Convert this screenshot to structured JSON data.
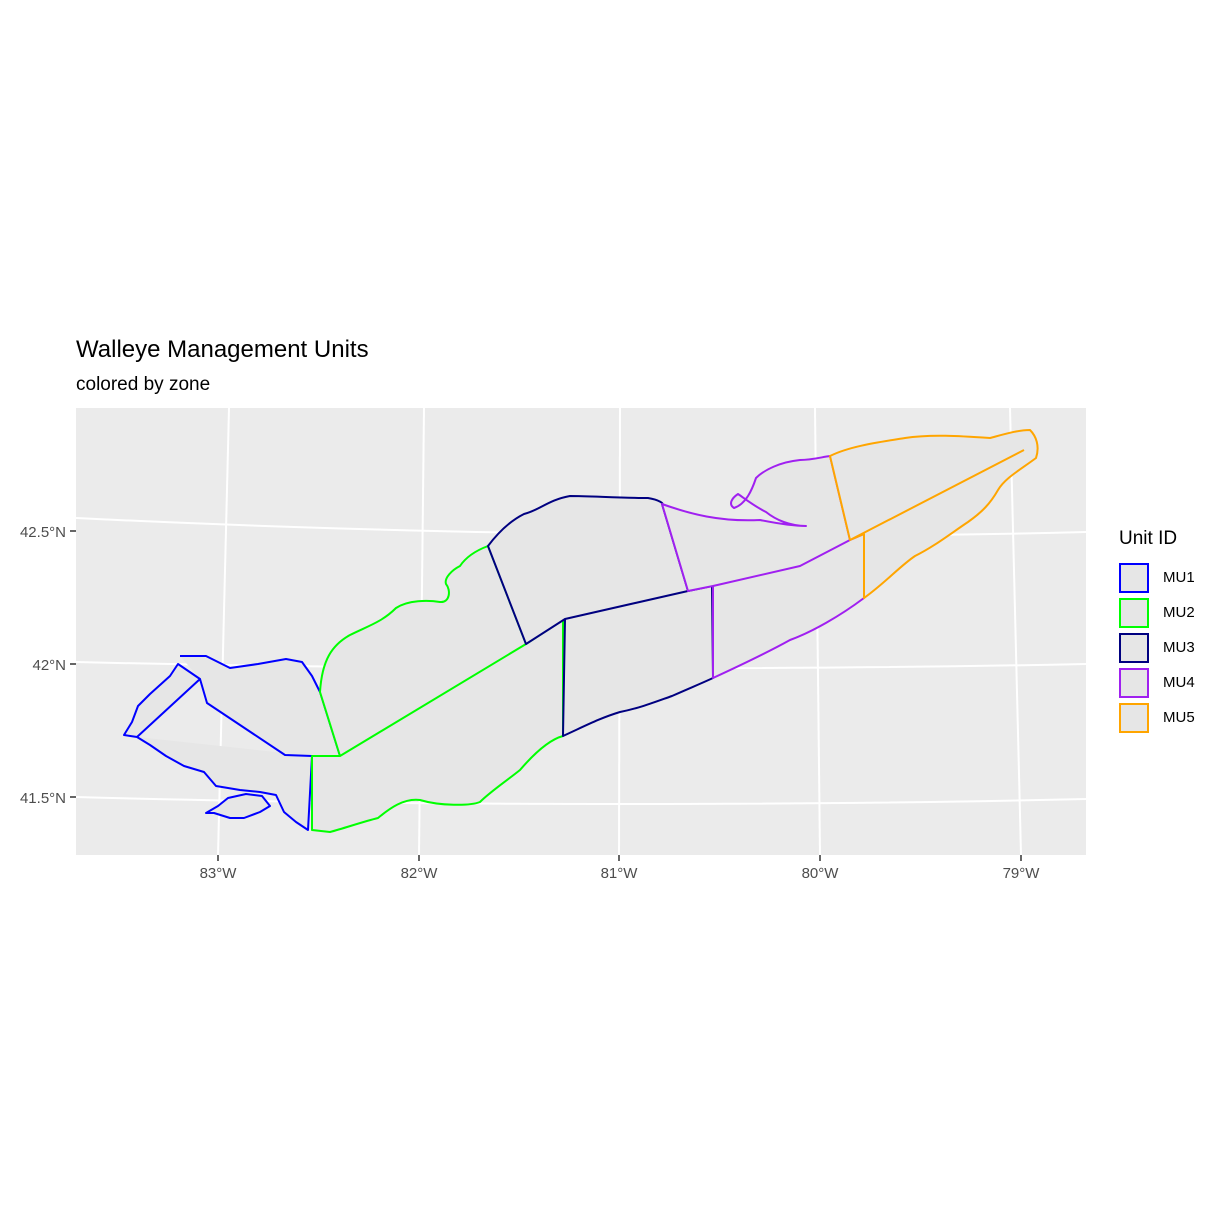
{
  "title": "Walleye Management Units",
  "subtitle": "colored by zone",
  "legend": {
    "title": "Unit ID",
    "items": [
      {
        "label": "MU1",
        "color": "#0000ff"
      },
      {
        "label": "MU2",
        "color": "#00ff00"
      },
      {
        "label": "MU3",
        "color": "#000080"
      },
      {
        "label": "MU4",
        "color": "#a020f0"
      },
      {
        "label": "MU5",
        "color": "#ffa500"
      }
    ]
  },
  "axes": {
    "x_ticks": [
      "83°W",
      "82°W",
      "81°W",
      "80°W",
      "79°W"
    ],
    "y_ticks": [
      "42.5°N",
      "42°N",
      "41.5°N"
    ]
  },
  "colors": {
    "panel_bg": "#ebebeb",
    "grid": "#ffffff",
    "lake_fill": "#e6e6e6"
  }
}
